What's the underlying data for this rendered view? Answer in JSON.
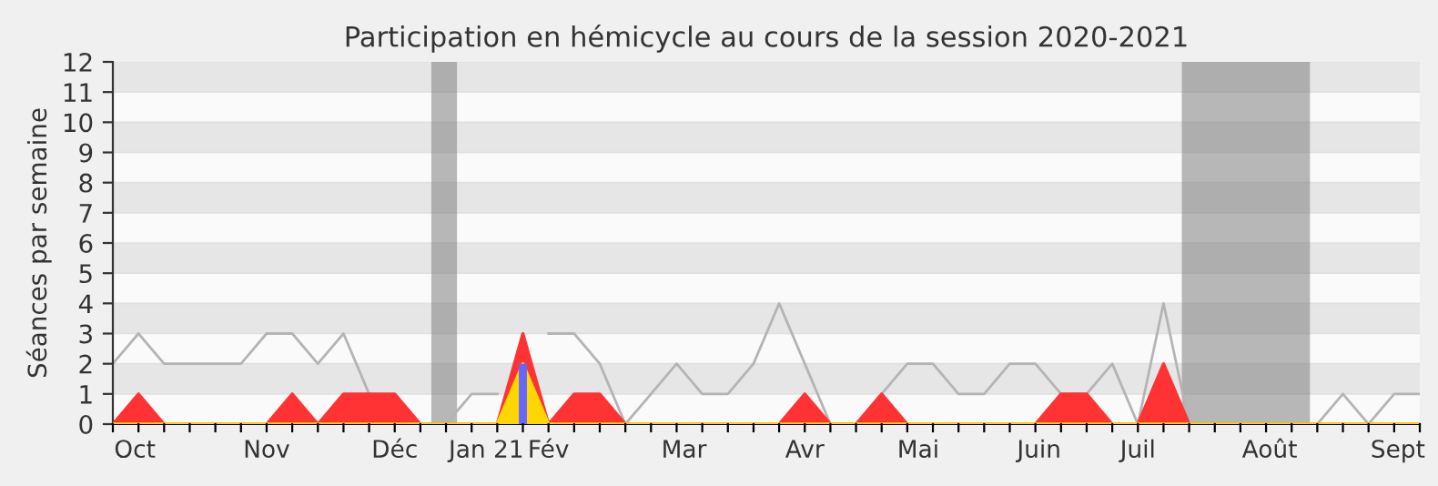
{
  "chart_data": {
    "type": "line",
    "title": "Participation en hémicycle au cours de la session 2020-2021",
    "ylabel": "Séances par semaine",
    "x": [
      "2020-09-28",
      "2020-10-05",
      "2020-10-12",
      "2020-10-19",
      "2020-10-26",
      "2020-11-02",
      "2020-11-09",
      "2020-11-16",
      "2020-11-23",
      "2020-11-30",
      "2020-12-07",
      "2020-12-14",
      "2020-12-21",
      "2020-12-28",
      "2021-01-04",
      "2021-01-11",
      "2021-01-18",
      "2021-01-25",
      "2021-02-01",
      "2021-02-08",
      "2021-02-15",
      "2021-02-22",
      "2021-03-01",
      "2021-03-08",
      "2021-03-15",
      "2021-03-22",
      "2021-03-29",
      "2021-04-05",
      "2021-04-12",
      "2021-04-19",
      "2021-04-26",
      "2021-05-03",
      "2021-05-10",
      "2021-05-17",
      "2021-05-24",
      "2021-05-31",
      "2021-06-07",
      "2021-06-14",
      "2021-06-21",
      "2021-06-28",
      "2021-07-05",
      "2021-07-12",
      "2021-07-19",
      "2021-07-26",
      "2021-08-02",
      "2021-08-09",
      "2021-08-16",
      "2021-08-23",
      "2021-08-30",
      "2021-09-06",
      "2021-09-13",
      "2021-09-20"
    ],
    "series": [
      {
        "color": "#b4b4b4",
        "values": [
          2,
          3,
          2,
          2,
          2,
          2,
          3,
          3,
          2,
          3,
          1,
          null,
          0,
          0,
          1,
          1,
          null,
          3,
          3,
          2,
          0,
          1,
          2,
          1,
          1,
          2,
          4,
          2,
          0,
          0,
          1,
          2,
          2,
          1,
          1,
          2,
          2,
          1,
          1,
          2,
          0,
          4,
          0,
          0,
          0,
          0,
          0,
          0,
          1,
          0,
          1,
          1
        ]
      },
      {
        "type": "area",
        "color": "#ff3333",
        "values": [
          0,
          1,
          0,
          0,
          0,
          0,
          0,
          1,
          0,
          1,
          1,
          1,
          0,
          0,
          0,
          0,
          3,
          0,
          1,
          1,
          0,
          0,
          0,
          0,
          0,
          0,
          0,
          1,
          0,
          0,
          1,
          0,
          0,
          0,
          0,
          0,
          0,
          1,
          1,
          0,
          0,
          2,
          0,
          0,
          0,
          0,
          0,
          0,
          0,
          0,
          0,
          0
        ]
      },
      {
        "type": "area",
        "color": "#ffd700",
        "values": [
          0,
          0,
          0,
          0,
          0,
          0,
          0,
          0,
          0,
          0,
          0,
          0,
          0,
          0,
          0,
          0,
          2,
          0,
          0,
          0,
          0,
          0,
          0,
          0,
          0,
          0,
          0,
          0,
          0,
          0,
          0,
          0,
          0,
          0,
          0,
          0,
          0,
          0,
          0,
          0,
          0,
          0,
          0,
          0,
          0,
          0,
          0,
          0,
          0,
          0,
          0,
          0
        ]
      },
      {
        "type": "bar",
        "color": "#6666ff",
        "values": [
          0,
          0,
          0,
          0,
          0,
          0,
          0,
          0,
          0,
          0,
          0,
          0,
          0,
          0,
          0,
          0,
          2,
          0,
          0,
          0,
          0,
          0,
          0,
          0,
          0,
          0,
          0,
          0,
          0,
          0,
          0,
          0,
          0,
          0,
          0,
          0,
          0,
          0,
          0,
          0,
          0,
          0,
          0,
          0,
          0,
          0,
          0,
          0,
          0,
          0,
          0,
          0
        ]
      }
    ],
    "xlim": [
      "2020-09-28",
      "2021-09-20"
    ],
    "xticks": [
      {
        "value": "2020-10-04",
        "label": "Oct"
      },
      {
        "value": "2020-11-09",
        "label": "Nov"
      },
      {
        "value": "2020-12-14",
        "label": "Déc"
      },
      {
        "value": "2021-01-08",
        "label": "Jan 21"
      },
      {
        "value": "2021-01-25",
        "label": "Fév"
      },
      {
        "value": "2021-03-03",
        "label": "Mar"
      },
      {
        "value": "2021-04-05",
        "label": "Avr"
      },
      {
        "value": "2021-05-06",
        "label": "Mai"
      },
      {
        "value": "2021-06-08",
        "label": "Juin"
      },
      {
        "value": "2021-07-05",
        "label": "Juil"
      },
      {
        "value": "2021-08-10",
        "label": "Août"
      },
      {
        "value": "2021-09-14",
        "label": "Sept"
      }
    ],
    "ylim": [
      0,
      12
    ],
    "yticks": [
      0,
      1,
      2,
      3,
      4,
      5,
      6,
      7,
      8,
      9,
      10,
      11,
      12
    ],
    "bands": [
      {
        "axis": "x",
        "from": "2020-12-24",
        "to": "2020-12-31"
      },
      {
        "axis": "x",
        "from": "2021-07-17",
        "to": "2021-08-21"
      }
    ],
    "grid": "y"
  }
}
